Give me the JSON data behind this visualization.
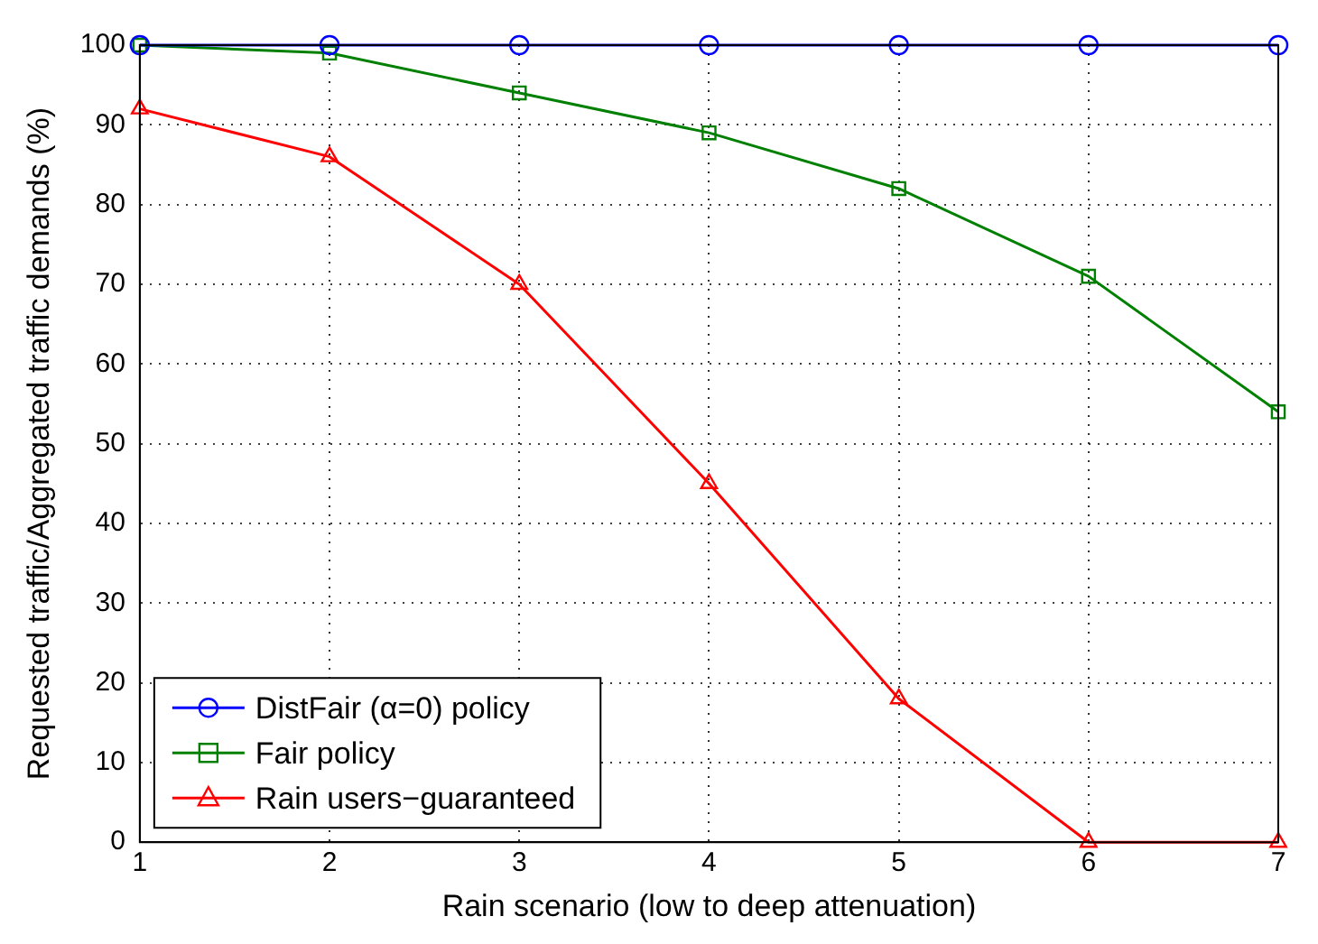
{
  "chart_data": {
    "type": "line",
    "xlabel": "Rain scenario (low to deep attenuation)",
    "ylabel": "Requested traffic/Aggregated traffic demands (%)",
    "x": [
      1,
      2,
      3,
      4,
      5,
      6,
      7
    ],
    "series": [
      {
        "name": "DistFair (α=0) policy",
        "color": "#0000ff",
        "marker": "circle",
        "values": [
          100,
          100,
          100,
          100,
          100,
          100,
          100
        ]
      },
      {
        "name": "Fair policy",
        "color": "#008000",
        "marker": "square",
        "values": [
          100,
          99,
          94,
          89,
          82,
          71,
          54
        ]
      },
      {
        "name": "Rain users−guaranteed",
        "color": "#ff0000",
        "marker": "triangle",
        "values": [
          92,
          86,
          70,
          45,
          18,
          0,
          0
        ]
      }
    ],
    "xlim": [
      1,
      7
    ],
    "xticks": [
      1,
      2,
      3,
      4,
      5,
      6,
      7
    ],
    "ylim": [
      0,
      100
    ],
    "yticks": [
      0,
      10,
      20,
      30,
      40,
      50,
      60,
      70,
      80,
      90,
      100
    ],
    "grid": true,
    "legend": "bottom left",
    "line_style": "solid"
  }
}
